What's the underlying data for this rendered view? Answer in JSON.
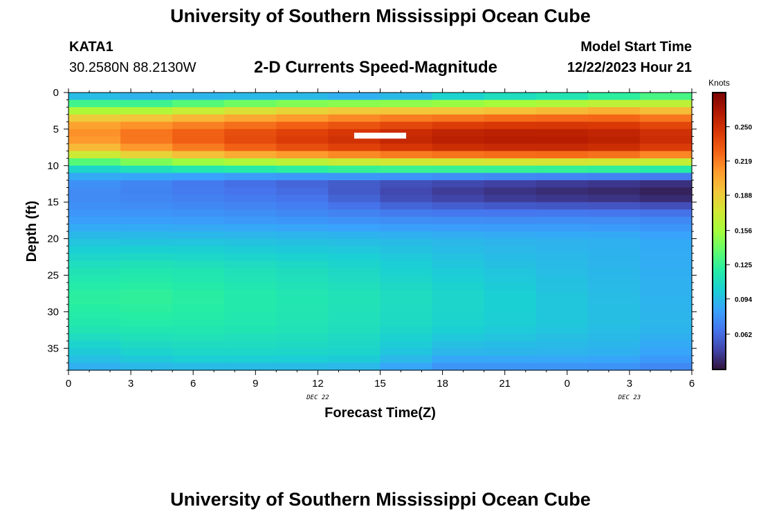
{
  "page": {
    "title": "University of Southern Mississippi Ocean Cube",
    "bottom_title": "University of Southern Mississippi Ocean Cube",
    "station": "KATA1",
    "coords": "30.2580N  88.2130W",
    "plot_title": "2-D Currents Speed-Magnitude",
    "model_start_label": "Model Start Time",
    "model_start_value": "12/22/2023 Hour 21"
  },
  "chart_data": {
    "type": "heatmap",
    "title": "2-D Currents Speed-Magnitude",
    "xlabel": "Forecast Time(Z)",
    "ylabel": "Depth (ft)",
    "x_tick_labels": [
      "0",
      "3",
      "6",
      "9",
      "12",
      "15",
      "18",
      "21",
      "0",
      "3",
      "6"
    ],
    "x_range": [
      0,
      30
    ],
    "date_labels": [
      {
        "text": "DEC 22",
        "x": 12
      },
      {
        "text": "DEC 23",
        "x": 27
      }
    ],
    "y_tick_labels": [
      "0",
      "5",
      "10",
      "15",
      "20",
      "25",
      "30",
      "35"
    ],
    "y_range": [
      0,
      38
    ],
    "time_columns": [
      0,
      2.5,
      5,
      7.5,
      10,
      12.5,
      15,
      17.5,
      20,
      22.5,
      25,
      27.5,
      30
    ],
    "depth_points": [
      0,
      2,
      4,
      6,
      8,
      10,
      12,
      14,
      17,
      20,
      24,
      28,
      32,
      36,
      38
    ],
    "speed_knots": [
      [
        0.08,
        0.075,
        0.07,
        0.07,
        0.068,
        0.065,
        0.055,
        0.075,
        0.085,
        0.09,
        0.095,
        0.105,
        0.12
      ],
      [
        0.15,
        0.14,
        0.15,
        0.16,
        0.17,
        0.175,
        0.18,
        0.175,
        0.178,
        0.18,
        0.185,
        0.19,
        0.175
      ],
      [
        0.2,
        0.205,
        0.21,
        0.215,
        0.22,
        0.225,
        0.23,
        0.235,
        0.238,
        0.24,
        0.24,
        0.238,
        0.23
      ],
      [
        0.21,
        0.222,
        0.23,
        0.238,
        0.245,
        0.25,
        0.255,
        0.262,
        0.265,
        0.265,
        0.263,
        0.26,
        0.25
      ],
      [
        0.18,
        0.2,
        0.21,
        0.22,
        0.228,
        0.235,
        0.24,
        0.245,
        0.248,
        0.25,
        0.25,
        0.245,
        0.235
      ],
      [
        0.11,
        0.12,
        0.13,
        0.135,
        0.14,
        0.145,
        0.15,
        0.15,
        0.15,
        0.15,
        0.15,
        0.148,
        0.14
      ],
      [
        0.08,
        0.075,
        0.07,
        0.065,
        0.06,
        0.058,
        0.055,
        0.052,
        0.05,
        0.048,
        0.046,
        0.045,
        0.042
      ],
      [
        0.075,
        0.072,
        0.07,
        0.068,
        0.065,
        0.062,
        0.05,
        0.045,
        0.04,
        0.038,
        0.036,
        0.035,
        0.03
      ],
      [
        0.08,
        0.08,
        0.08,
        0.078,
        0.077,
        0.075,
        0.073,
        0.072,
        0.072,
        0.072,
        0.073,
        0.072,
        0.07
      ],
      [
        0.095,
        0.095,
        0.095,
        0.095,
        0.094,
        0.094,
        0.093,
        0.092,
        0.091,
        0.09,
        0.09,
        0.089,
        0.085
      ],
      [
        0.11,
        0.115,
        0.115,
        0.112,
        0.11,
        0.108,
        0.105,
        0.1,
        0.098,
        0.095,
        0.093,
        0.09,
        0.086
      ],
      [
        0.12,
        0.125,
        0.123,
        0.12,
        0.117,
        0.115,
        0.112,
        0.108,
        0.105,
        0.1,
        0.096,
        0.093,
        0.088
      ],
      [
        0.115,
        0.118,
        0.118,
        0.117,
        0.115,
        0.113,
        0.11,
        0.105,
        0.103,
        0.1,
        0.097,
        0.094,
        0.09
      ],
      [
        0.095,
        0.1,
        0.105,
        0.105,
        0.105,
        0.105,
        0.103,
        0.09,
        0.09,
        0.09,
        0.09,
        0.088,
        0.08
      ],
      [
        0.085,
        0.088,
        0.09,
        0.09,
        0.09,
        0.09,
        0.088,
        0.075,
        0.075,
        0.075,
        0.075,
        0.073,
        0.068
      ]
    ],
    "missing_cells": [
      {
        "t0": 13.75,
        "t1": 16.25,
        "d0": 5.5,
        "d1": 6.3
      }
    ],
    "colorbar": {
      "unit": "Knots",
      "min": 0.03,
      "max": 0.281,
      "tick_values": [
        0.062,
        0.094,
        0.125,
        0.156,
        0.188,
        0.219,
        0.25
      ],
      "tick_labels": [
        "0.062",
        "0.094",
        "0.125",
        "0.156",
        "0.188",
        "0.219",
        "0.250"
      ],
      "colors": [
        "#30123b",
        "#4145ab",
        "#4675ed",
        "#39a2fc",
        "#1bcfd4",
        "#24eca6",
        "#61fc6c",
        "#a4fc3b",
        "#d1e834",
        "#f3c63a",
        "#fe9b2d",
        "#f36315",
        "#d93806",
        "#b11901",
        "#7a0403"
      ]
    }
  }
}
